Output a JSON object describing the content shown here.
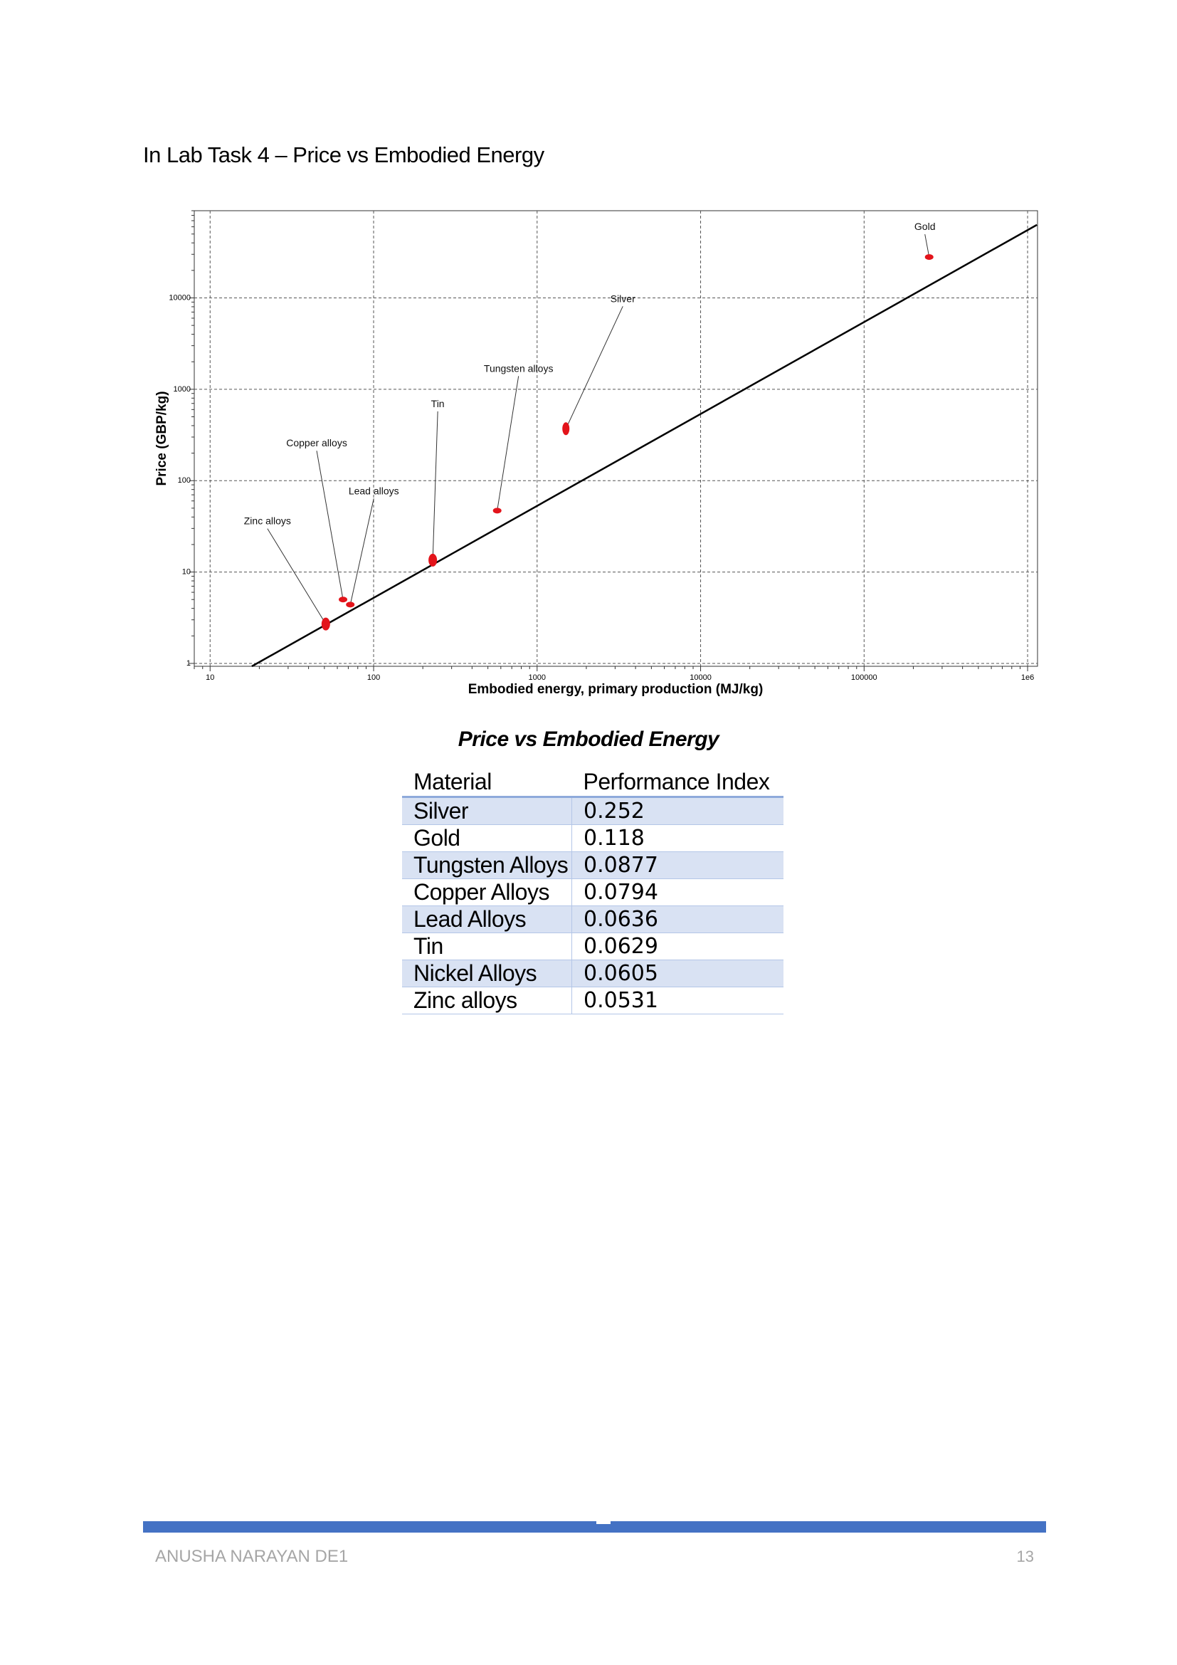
{
  "page": {
    "heading": "In Lab Task 4 – Price vs Embodied Energy",
    "caption": "Price vs Embodied Energy",
    "footer": {
      "author": "ANUSHA NARAYAN DE1",
      "page_number": "13",
      "bar_color": "#4472c4"
    }
  },
  "chart_data": {
    "type": "scatter",
    "x_scale": "log",
    "y_scale": "log",
    "xlabel": "Embodied energy, primary production (MJ/kg)",
    "ylabel": "Price (GBP/kg)",
    "xlim": [
      8,
      1150000
    ],
    "ylim": [
      0.93,
      90000
    ],
    "x_ticks": [
      10,
      100,
      1000,
      10000,
      100000,
      1000000
    ],
    "x_tick_labels": [
      "10",
      "100",
      "1000",
      "10000",
      "100000",
      "1e6"
    ],
    "y_ticks": [
      1,
      10,
      100,
      1000,
      10000
    ],
    "y_tick_labels": [
      "1",
      "10",
      "100",
      "1000",
      "10000"
    ],
    "grid": true,
    "point_color": "#e3141b",
    "points": [
      {
        "name": "Gold",
        "x": 250000,
        "y": 28000
      },
      {
        "name": "Silver",
        "x": 1500,
        "y": 370
      },
      {
        "name": "Tungsten alloys",
        "x": 570,
        "y": 47
      },
      {
        "name": "Tin",
        "x": 230,
        "y": 13.5
      },
      {
        "name": "Copper alloys",
        "x": 65,
        "y": 5
      },
      {
        "name": "Lead alloys",
        "x": 72,
        "y": 4.4
      },
      {
        "name": "Zinc alloys",
        "x": 51,
        "y": 2.7
      }
    ],
    "guide_line": {
      "x": [
        18,
        1140000
      ],
      "y": [
        0.93,
        63000
      ],
      "color": "#000000"
    }
  },
  "table": {
    "headers": [
      "Material",
      "Performance Index"
    ],
    "rows": [
      [
        "Silver",
        "0.252"
      ],
      [
        "Gold",
        "0.118"
      ],
      [
        "Tungsten Alloys",
        "0.0877"
      ],
      [
        "Copper Alloys",
        "0.0794"
      ],
      [
        "Lead Alloys",
        "0.0636"
      ],
      [
        "Tin",
        "0.0629"
      ],
      [
        "Nickel Alloys",
        "0.0605"
      ],
      [
        "Zinc alloys",
        "0.0531"
      ]
    ]
  }
}
